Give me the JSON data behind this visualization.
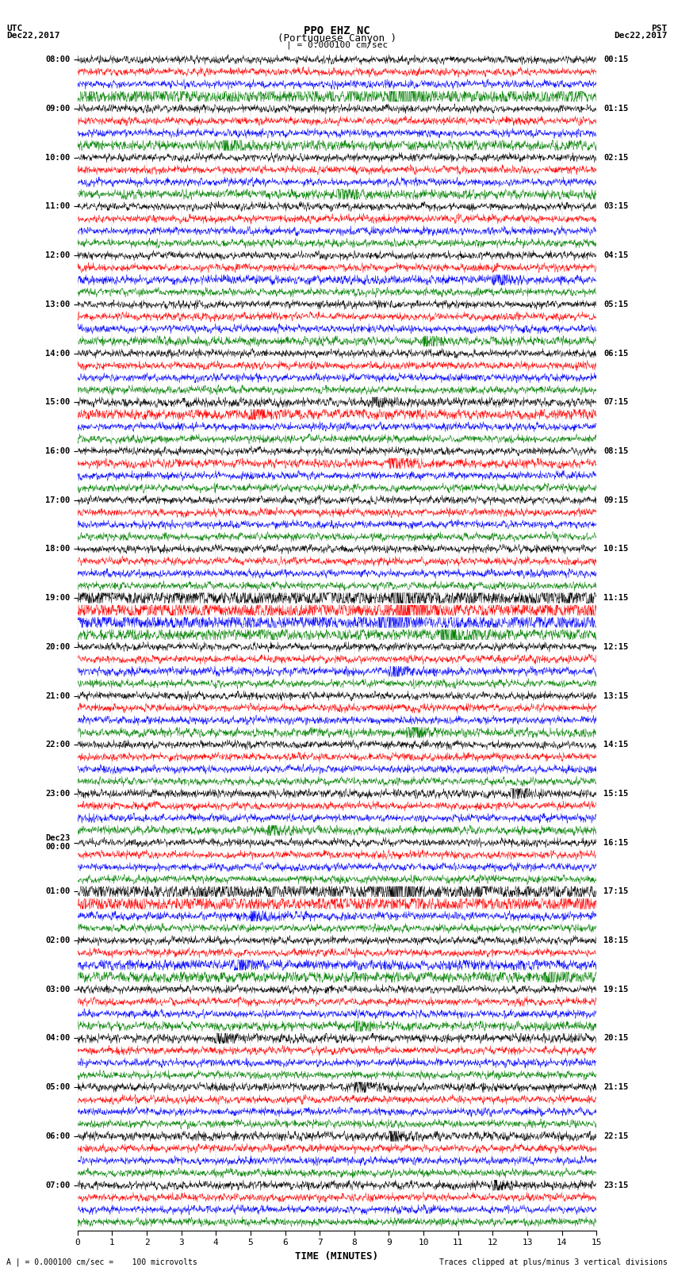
{
  "title_line1": "PPO EHZ NC",
  "title_line2": "(Portuguese Canyon )",
  "title_line3": "| = 0.000100 cm/sec",
  "left_label_line1": "UTC",
  "left_label_line2": "Dec22,2017",
  "right_label_line1": "PST",
  "right_label_line2": "Dec22,2017",
  "xlabel": "TIME (MINUTES)",
  "bottom_left_note": "A | = 0.000100 cm/sec =    100 microvolts",
  "bottom_right_note": "Traces clipped at plus/minus 3 vertical divisions",
  "colors": [
    "black",
    "red",
    "blue",
    "green"
  ],
  "utc_labels_main": [
    "08:00",
    "09:00",
    "10:00",
    "11:00",
    "12:00",
    "13:00",
    "14:00",
    "15:00",
    "16:00",
    "17:00",
    "18:00",
    "19:00",
    "20:00",
    "21:00",
    "22:00",
    "23:00",
    "Dec23\n00:00",
    "01:00",
    "02:00",
    "03:00",
    "04:00",
    "05:00",
    "06:00",
    "07:00"
  ],
  "pst_labels_main": [
    "00:15",
    "01:15",
    "02:15",
    "03:15",
    "04:15",
    "05:15",
    "06:15",
    "07:15",
    "08:15",
    "09:15",
    "10:15",
    "11:15",
    "12:15",
    "13:15",
    "14:15",
    "15:15",
    "16:15",
    "17:15",
    "18:15",
    "19:15",
    "20:15",
    "21:15",
    "22:15",
    "23:15"
  ],
  "n_hours": 24,
  "traces_per_hour": 4,
  "n_minutes": 15,
  "bg_color": "white",
  "trace_clip": 0.42,
  "noise_base_amp": 0.15,
  "figsize": [
    8.5,
    16.13
  ],
  "lw": 0.35,
  "pts_per_min": 120,
  "event_rows": {
    "3": [
      9.0,
      3.5,
      0.25
    ],
    "44": [
      9.1,
      4.0,
      0.3
    ],
    "45": [
      9.2,
      3.8,
      0.28
    ],
    "46": [
      8.7,
      3.2,
      0.25
    ],
    "47": [
      10.5,
      2.5,
      0.2
    ],
    "68": [
      9.0,
      3.5,
      0.28
    ],
    "69": [
      14.5,
      3.0,
      0.25
    ]
  },
  "moderate_rows": {
    "7": [
      4.2,
      1.8,
      0.18
    ],
    "11": [
      7.5,
      1.6,
      0.16
    ],
    "18": [
      12.0,
      1.5,
      0.15
    ],
    "23": [
      10.0,
      1.4,
      0.15
    ],
    "28": [
      8.5,
      1.5,
      0.15
    ],
    "29": [
      5.0,
      2.0,
      0.18
    ],
    "33": [
      9.0,
      1.6,
      0.15
    ],
    "50": [
      9.0,
      1.4,
      0.14
    ],
    "55": [
      9.5,
      1.5,
      0.15
    ],
    "60": [
      12.5,
      1.4,
      0.14
    ],
    "63": [
      5.5,
      1.4,
      0.14
    ],
    "70": [
      5.0,
      1.4,
      0.14
    ],
    "74": [
      4.5,
      2.0,
      0.18
    ],
    "75": [
      13.5,
      2.2,
      0.2
    ],
    "79": [
      8.0,
      1.5,
      0.15
    ],
    "80": [
      4.0,
      1.5,
      0.15
    ],
    "84": [
      8.0,
      1.4,
      0.14
    ],
    "88": [
      9.0,
      1.5,
      0.15
    ],
    "92": [
      12.0,
      1.4,
      0.14
    ]
  }
}
